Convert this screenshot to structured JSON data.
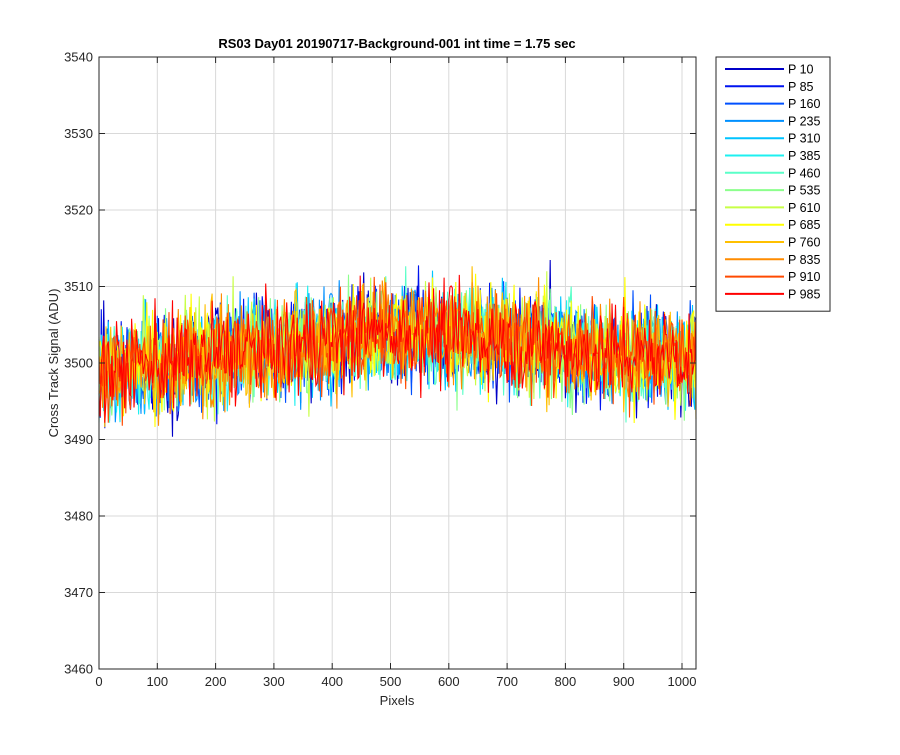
{
  "chart_data": {
    "type": "line",
    "title": "RS03 Day01 20190717-Background-001 int time = 1.75 sec",
    "xlabel": "Pixels",
    "ylabel": "Cross Track Signal (ADU)",
    "xlim": [
      0,
      1024
    ],
    "ylim": [
      3460,
      3540
    ],
    "xticks": [
      0,
      100,
      200,
      300,
      400,
      500,
      600,
      700,
      800,
      900,
      1000
    ],
    "yticks": [
      3460,
      3470,
      3480,
      3490,
      3500,
      3510,
      3520,
      3530,
      3540
    ],
    "grid": true,
    "legend_position": "outside-top-right",
    "series_mean_profile": {
      "x": [
        0,
        100,
        200,
        300,
        400,
        500,
        600,
        700,
        800,
        900,
        1024
      ],
      "y": [
        3499,
        3500,
        3501,
        3502,
        3503,
        3504,
        3504,
        3503,
        3502,
        3501,
        3501
      ]
    },
    "noise_amplitude": 7,
    "series": [
      {
        "name": "P 10",
        "color": "#0000c8"
      },
      {
        "name": "P 85",
        "color": "#0014f0"
      },
      {
        "name": "P 160",
        "color": "#0050ff"
      },
      {
        "name": "P 235",
        "color": "#0090ff"
      },
      {
        "name": "P 310",
        "color": "#00c4ff"
      },
      {
        "name": "P 385",
        "color": "#1ef0f0"
      },
      {
        "name": "P 460",
        "color": "#5affc8"
      },
      {
        "name": "P 535",
        "color": "#8cff8c"
      },
      {
        "name": "P 610",
        "color": "#c8ff46"
      },
      {
        "name": "P 685",
        "color": "#ffff00"
      },
      {
        "name": "P 760",
        "color": "#ffc000"
      },
      {
        "name": "P 835",
        "color": "#ff8c00"
      },
      {
        "name": "P 910",
        "color": "#ff4a00"
      },
      {
        "name": "P 985",
        "color": "#ff0000"
      }
    ]
  }
}
